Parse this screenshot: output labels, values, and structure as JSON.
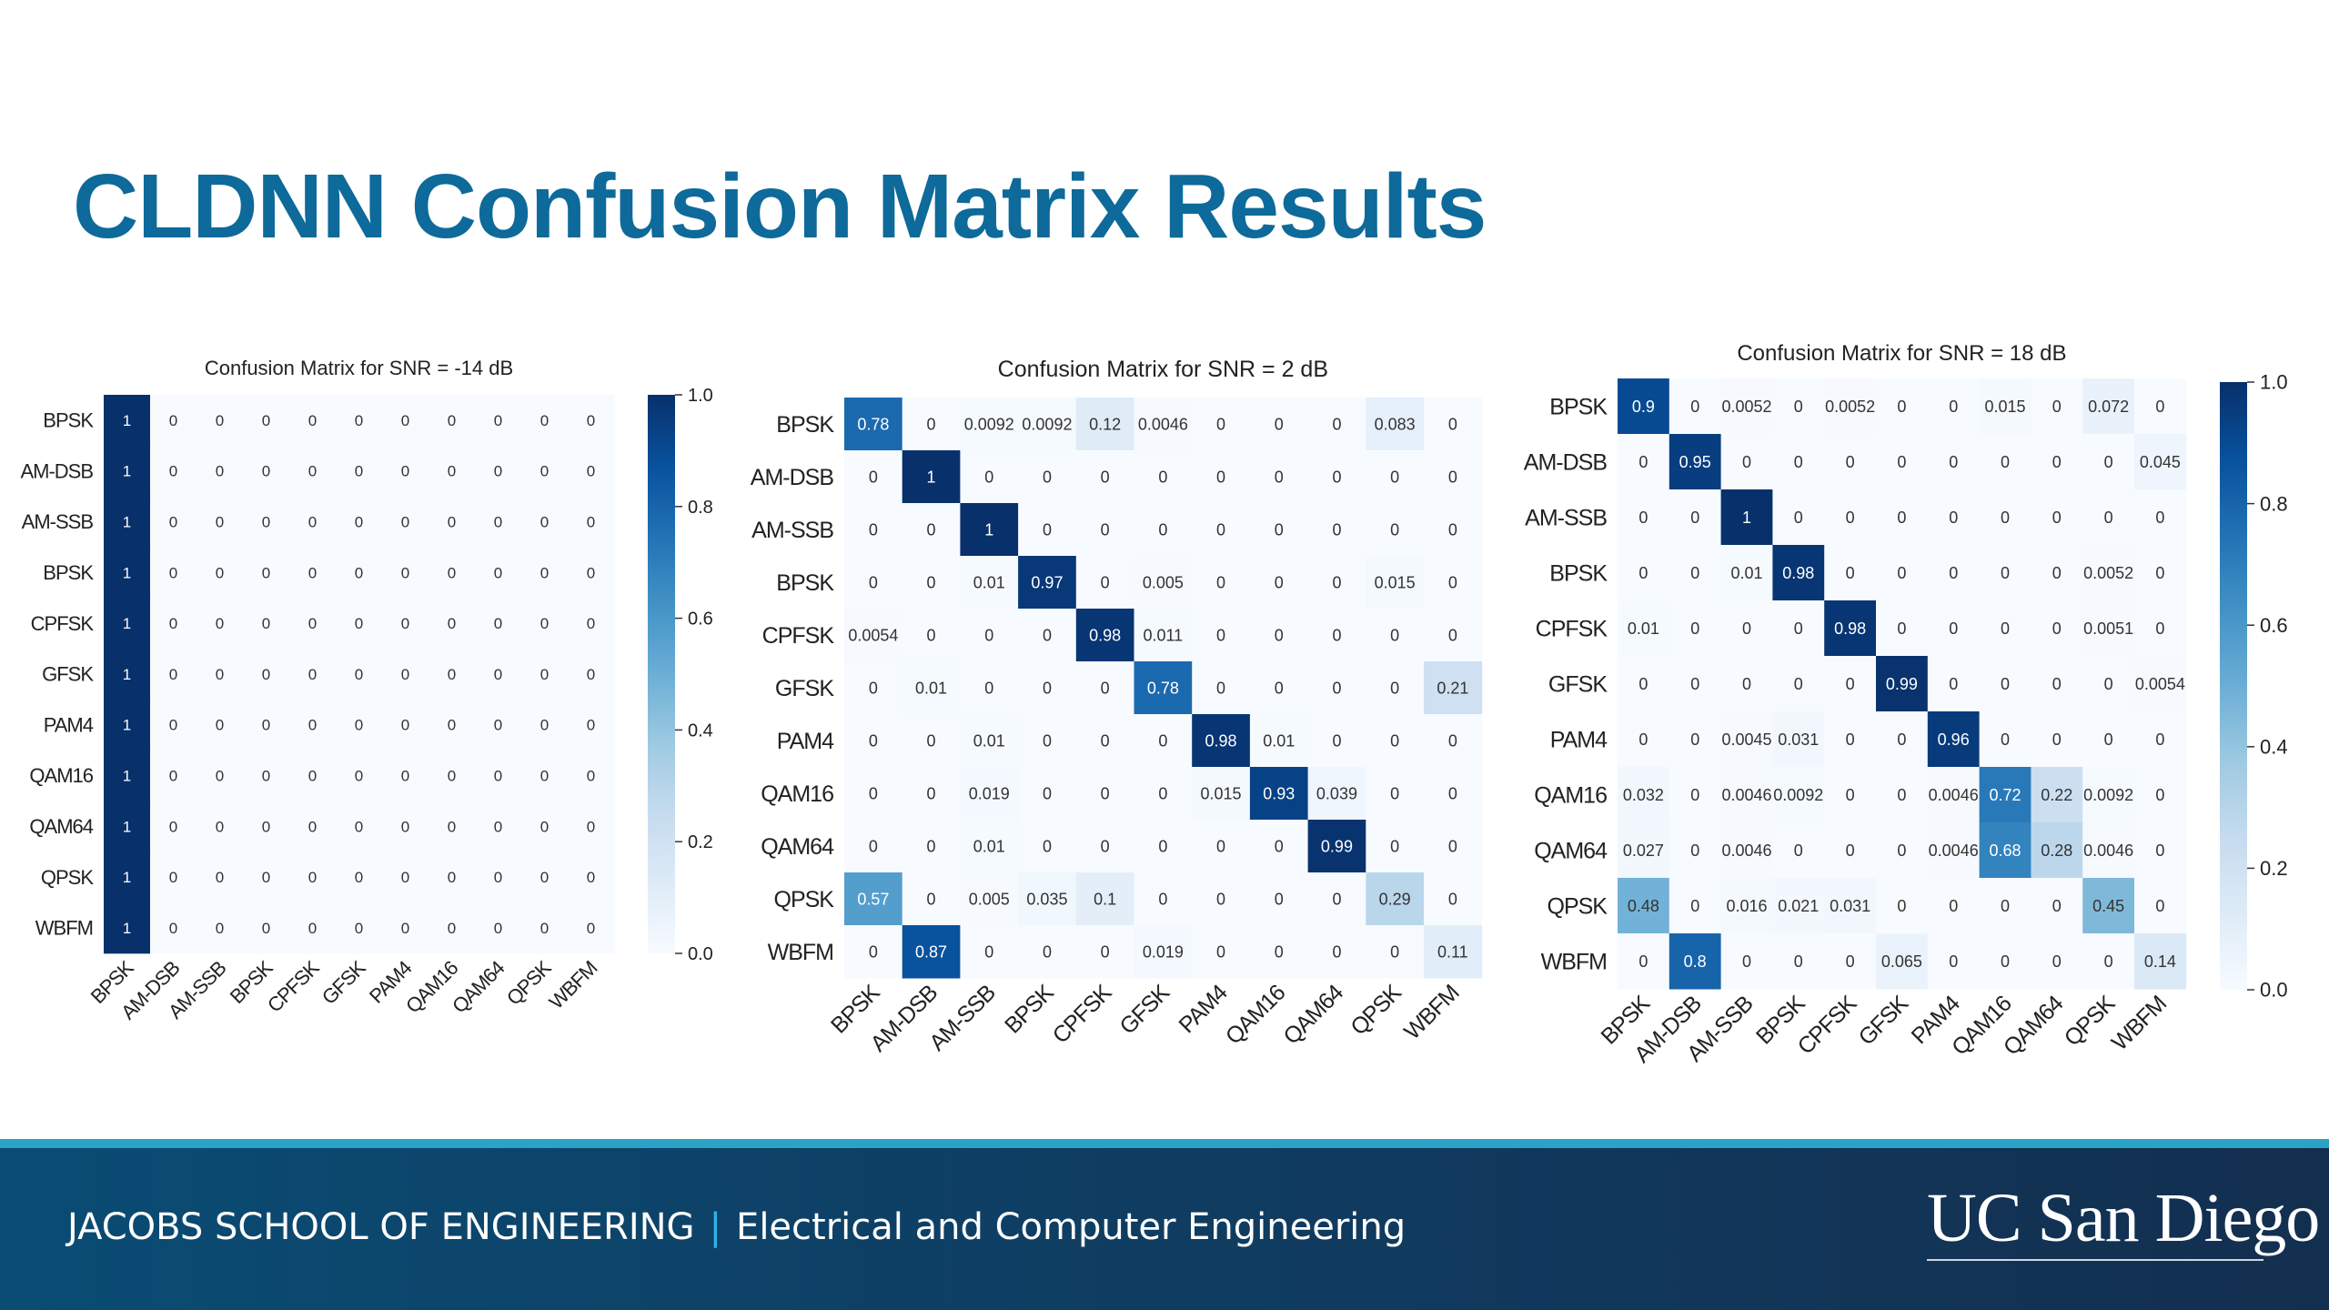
{
  "slide": {
    "title": "CLDNN Confusion Matrix Results",
    "footer_left": "JACOBS SCHOOL OF ENGINEERING",
    "footer_separator": "|",
    "footer_right": "Electrical and Computer Engineering",
    "logo_text": "UC San Diego"
  },
  "chart_data": [
    {
      "type": "heatmap",
      "title": "Confusion Matrix for SNR = -14 dB",
      "rows": [
        "BPSK",
        "AM-DSB",
        "AM-SSB",
        "BPSK",
        "CPFSK",
        "GFSK",
        "PAM4",
        "QAM16",
        "QAM64",
        "QPSK",
        "WBFM"
      ],
      "columns": [
        "BPSK",
        "AM-DSB",
        "AM-SSB",
        "BPSK",
        "CPFSK",
        "GFSK",
        "PAM4",
        "QAM16",
        "QAM64",
        "QPSK",
        "WBFM"
      ],
      "values": [
        [
          "1",
          "0",
          "0",
          "0",
          "0",
          "0",
          "0",
          "0",
          "0",
          "0",
          "0"
        ],
        [
          "1",
          "0",
          "0",
          "0",
          "0",
          "0",
          "0",
          "0",
          "0",
          "0",
          "0"
        ],
        [
          "1",
          "0",
          "0",
          "0",
          "0",
          "0",
          "0",
          "0",
          "0",
          "0",
          "0"
        ],
        [
          "1",
          "0",
          "0",
          "0",
          "0",
          "0",
          "0",
          "0",
          "0",
          "0",
          "0"
        ],
        [
          "1",
          "0",
          "0",
          "0",
          "0",
          "0",
          "0",
          "0",
          "0",
          "0",
          "0"
        ],
        [
          "1",
          "0",
          "0",
          "0",
          "0",
          "0",
          "0",
          "0",
          "0",
          "0",
          "0"
        ],
        [
          "1",
          "0",
          "0",
          "0",
          "0",
          "0",
          "0",
          "0",
          "0",
          "0",
          "0"
        ],
        [
          "1",
          "0",
          "0",
          "0",
          "0",
          "0",
          "0",
          "0",
          "0",
          "0",
          "0"
        ],
        [
          "1",
          "0",
          "0",
          "0",
          "0",
          "0",
          "0",
          "0",
          "0",
          "0",
          "0"
        ],
        [
          "1",
          "0",
          "0",
          "0",
          "0",
          "0",
          "0",
          "0",
          "0",
          "0",
          "0"
        ],
        [
          "1",
          "0",
          "0",
          "0",
          "0",
          "0",
          "0",
          "0",
          "0",
          "0",
          "0"
        ]
      ],
      "colorbar": {
        "range": [
          0,
          1.0
        ],
        "ticks": [
          "0.0",
          "0.2",
          "0.4",
          "0.6",
          "0.8",
          "1.0"
        ]
      }
    },
    {
      "type": "heatmap",
      "title": "Confusion Matrix for SNR = 2 dB",
      "rows": [
        "BPSK",
        "AM-DSB",
        "AM-SSB",
        "BPSK",
        "CPFSK",
        "GFSK",
        "PAM4",
        "QAM16",
        "QAM64",
        "QPSK",
        "WBFM"
      ],
      "columns": [
        "BPSK",
        "AM-DSB",
        "AM-SSB",
        "BPSK",
        "CPFSK",
        "GFSK",
        "PAM4",
        "QAM16",
        "QAM64",
        "QPSK",
        "WBFM"
      ],
      "values": [
        [
          "0.78",
          "0",
          "0.0092",
          "0.0092",
          "0.12",
          "0.0046",
          "0",
          "0",
          "0",
          "0.083",
          "0"
        ],
        [
          "0",
          "1",
          "0",
          "0",
          "0",
          "0",
          "0",
          "0",
          "0",
          "0",
          "0"
        ],
        [
          "0",
          "0",
          "1",
          "0",
          "0",
          "0",
          "0",
          "0",
          "0",
          "0",
          "0"
        ],
        [
          "0",
          "0",
          "0.01",
          "0.97",
          "0",
          "0.005",
          "0",
          "0",
          "0",
          "0.015",
          "0"
        ],
        [
          "0.0054",
          "0",
          "0",
          "0",
          "0.98",
          "0.011",
          "0",
          "0",
          "0",
          "0",
          "0"
        ],
        [
          "0",
          "0.01",
          "0",
          "0",
          "0",
          "0.78",
          "0",
          "0",
          "0",
          "0",
          "0.21"
        ],
        [
          "0",
          "0",
          "0.01",
          "0",
          "0",
          "0",
          "0.98",
          "0.01",
          "0",
          "0",
          "0"
        ],
        [
          "0",
          "0",
          "0.019",
          "0",
          "0",
          "0",
          "0.015",
          "0.93",
          "0.039",
          "0",
          "0"
        ],
        [
          "0",
          "0",
          "0.01",
          "0",
          "0",
          "0",
          "0",
          "0",
          "0.99",
          "0",
          "0"
        ],
        [
          "0.57",
          "0",
          "0.005",
          "0.035",
          "0.1",
          "0",
          "0",
          "0",
          "0",
          "0.29",
          "0"
        ],
        [
          "0",
          "0.87",
          "0",
          "0",
          "0",
          "0.019",
          "0",
          "0",
          "0",
          "0",
          "0.11"
        ]
      ]
    },
    {
      "type": "heatmap",
      "title": "Confusion Matrix for SNR = 18 dB",
      "rows": [
        "BPSK",
        "AM-DSB",
        "AM-SSB",
        "BPSK",
        "CPFSK",
        "GFSK",
        "PAM4",
        "QAM16",
        "QAM64",
        "QPSK",
        "WBFM"
      ],
      "columns": [
        "BPSK",
        "AM-DSB",
        "AM-SSB",
        "BPSK",
        "CPFSK",
        "GFSK",
        "PAM4",
        "QAM16",
        "QAM64",
        "QPSK",
        "WBFM"
      ],
      "values": [
        [
          "0.9",
          "0",
          "0.0052",
          "0",
          "0.0052",
          "0",
          "0",
          "0.015",
          "0",
          "0.072",
          "0"
        ],
        [
          "0",
          "0.95",
          "0",
          "0",
          "0",
          "0",
          "0",
          "0",
          "0",
          "0",
          "0.045"
        ],
        [
          "0",
          "0",
          "1",
          "0",
          "0",
          "0",
          "0",
          "0",
          "0",
          "0",
          "0"
        ],
        [
          "0",
          "0",
          "0.01",
          "0.98",
          "0",
          "0",
          "0",
          "0",
          "0",
          "0.0052",
          "0"
        ],
        [
          "0.01",
          "0",
          "0",
          "0",
          "0.98",
          "0",
          "0",
          "0",
          "0",
          "0.0051",
          "0"
        ],
        [
          "0",
          "0",
          "0",
          "0",
          "0",
          "0.99",
          "0",
          "0",
          "0",
          "0",
          "0.0054"
        ],
        [
          "0",
          "0",
          "0.0045",
          "0.031",
          "0",
          "0",
          "0.96",
          "0",
          "0",
          "0",
          "0"
        ],
        [
          "0.032",
          "0",
          "0.0046",
          "0.0092",
          "0",
          "0",
          "0.0046",
          "0.72",
          "0.22",
          "0.0092",
          "0"
        ],
        [
          "0.027",
          "0",
          "0.0046",
          "0",
          "0",
          "0",
          "0.0046",
          "0.68",
          "0.28",
          "0.0046",
          "0"
        ],
        [
          "0.48",
          "0",
          "0.016",
          "0.021",
          "0.031",
          "0",
          "0",
          "0",
          "0",
          "0.45",
          "0"
        ],
        [
          "0",
          "0.8",
          "0",
          "0",
          "0",
          "0.065",
          "0",
          "0",
          "0",
          "0",
          "0.14"
        ]
      ],
      "colorbar": {
        "range": [
          0,
          1.0
        ],
        "ticks": [
          "0.0",
          "0.2",
          "0.4",
          "0.6",
          "0.8",
          "1.0"
        ]
      }
    }
  ]
}
